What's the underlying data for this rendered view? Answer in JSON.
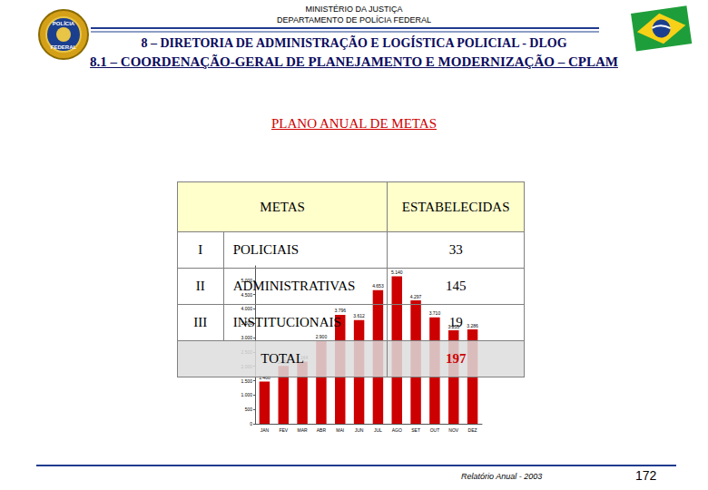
{
  "header": {
    "ministry": "MINISTÉRIO DA JUSTIÇA",
    "department": "DEPARTAMENTO DE POLÍCIA FEDERAL",
    "badge": [
      "POLÍCIA",
      "FEDERAL"
    ],
    "section": "8 – DIRETORIA DE ADMINISTRAÇÃO E LOGÍSTICA POLICIAL - DLOG",
    "subsection": "8.1 – COORDENAÇÃO-GERAL DE PLANEJAMENTO E MODERNIZAÇÃO – CPLAM"
  },
  "title": "PLANO ANUAL DE METAS",
  "table": {
    "columns": [
      "METAS",
      "ESTABELECIDAS"
    ],
    "rows": [
      [
        "I",
        "POLICIAIS",
        33
      ],
      [
        "II",
        "ADMINISTRATIVAS",
        145
      ],
      [
        "III",
        "INSTITUCIONAIS",
        19
      ]
    ],
    "total": [
      "TOTAL",
      197
    ]
  },
  "chart_data": {
    "type": "bar",
    "categories": [
      "JAN",
      "FEV",
      "MAR",
      "ABR",
      "MAI",
      "JUN",
      "JUL",
      "AGO",
      "SET",
      "OUT",
      "NOV",
      "DEZ"
    ],
    "values": [
      1468,
      2013,
      2164,
      2900,
      3796,
      3612,
      4653,
      5140,
      4297,
      3710,
      3255,
      3286
    ],
    "value_labels": [
      "1.468",
      "2.013",
      "2.164",
      "2.900",
      "3.796",
      "3.612",
      "4.653",
      "5.140",
      "4.297",
      "3.710",
      "3.255",
      "3.286"
    ],
    "color": "#cc0000",
    "ylim": [
      0,
      5500
    ],
    "yticks": [
      0,
      500,
      {
        "value": 1000,
        "label": "1.000"
      },
      {
        "value": 1500,
        "label": "1.500"
      },
      {
        "value": 2000,
        "label": "2.000"
      },
      {
        "value": 2500,
        "label": "2.500"
      },
      {
        "value": 3000,
        "label": "3.000"
      },
      {
        "value": 3500,
        "label": "3.500"
      },
      {
        "value": 4000,
        "label": "4.000"
      },
      {
        "value": 4500,
        "label": "4.500"
      },
      {
        "value": 5000,
        "label": "5.000"
      }
    ],
    "data_labels": true,
    "grid": false
  },
  "footer": {
    "report": "Relatório Anual - 2003",
    "page": 172
  }
}
